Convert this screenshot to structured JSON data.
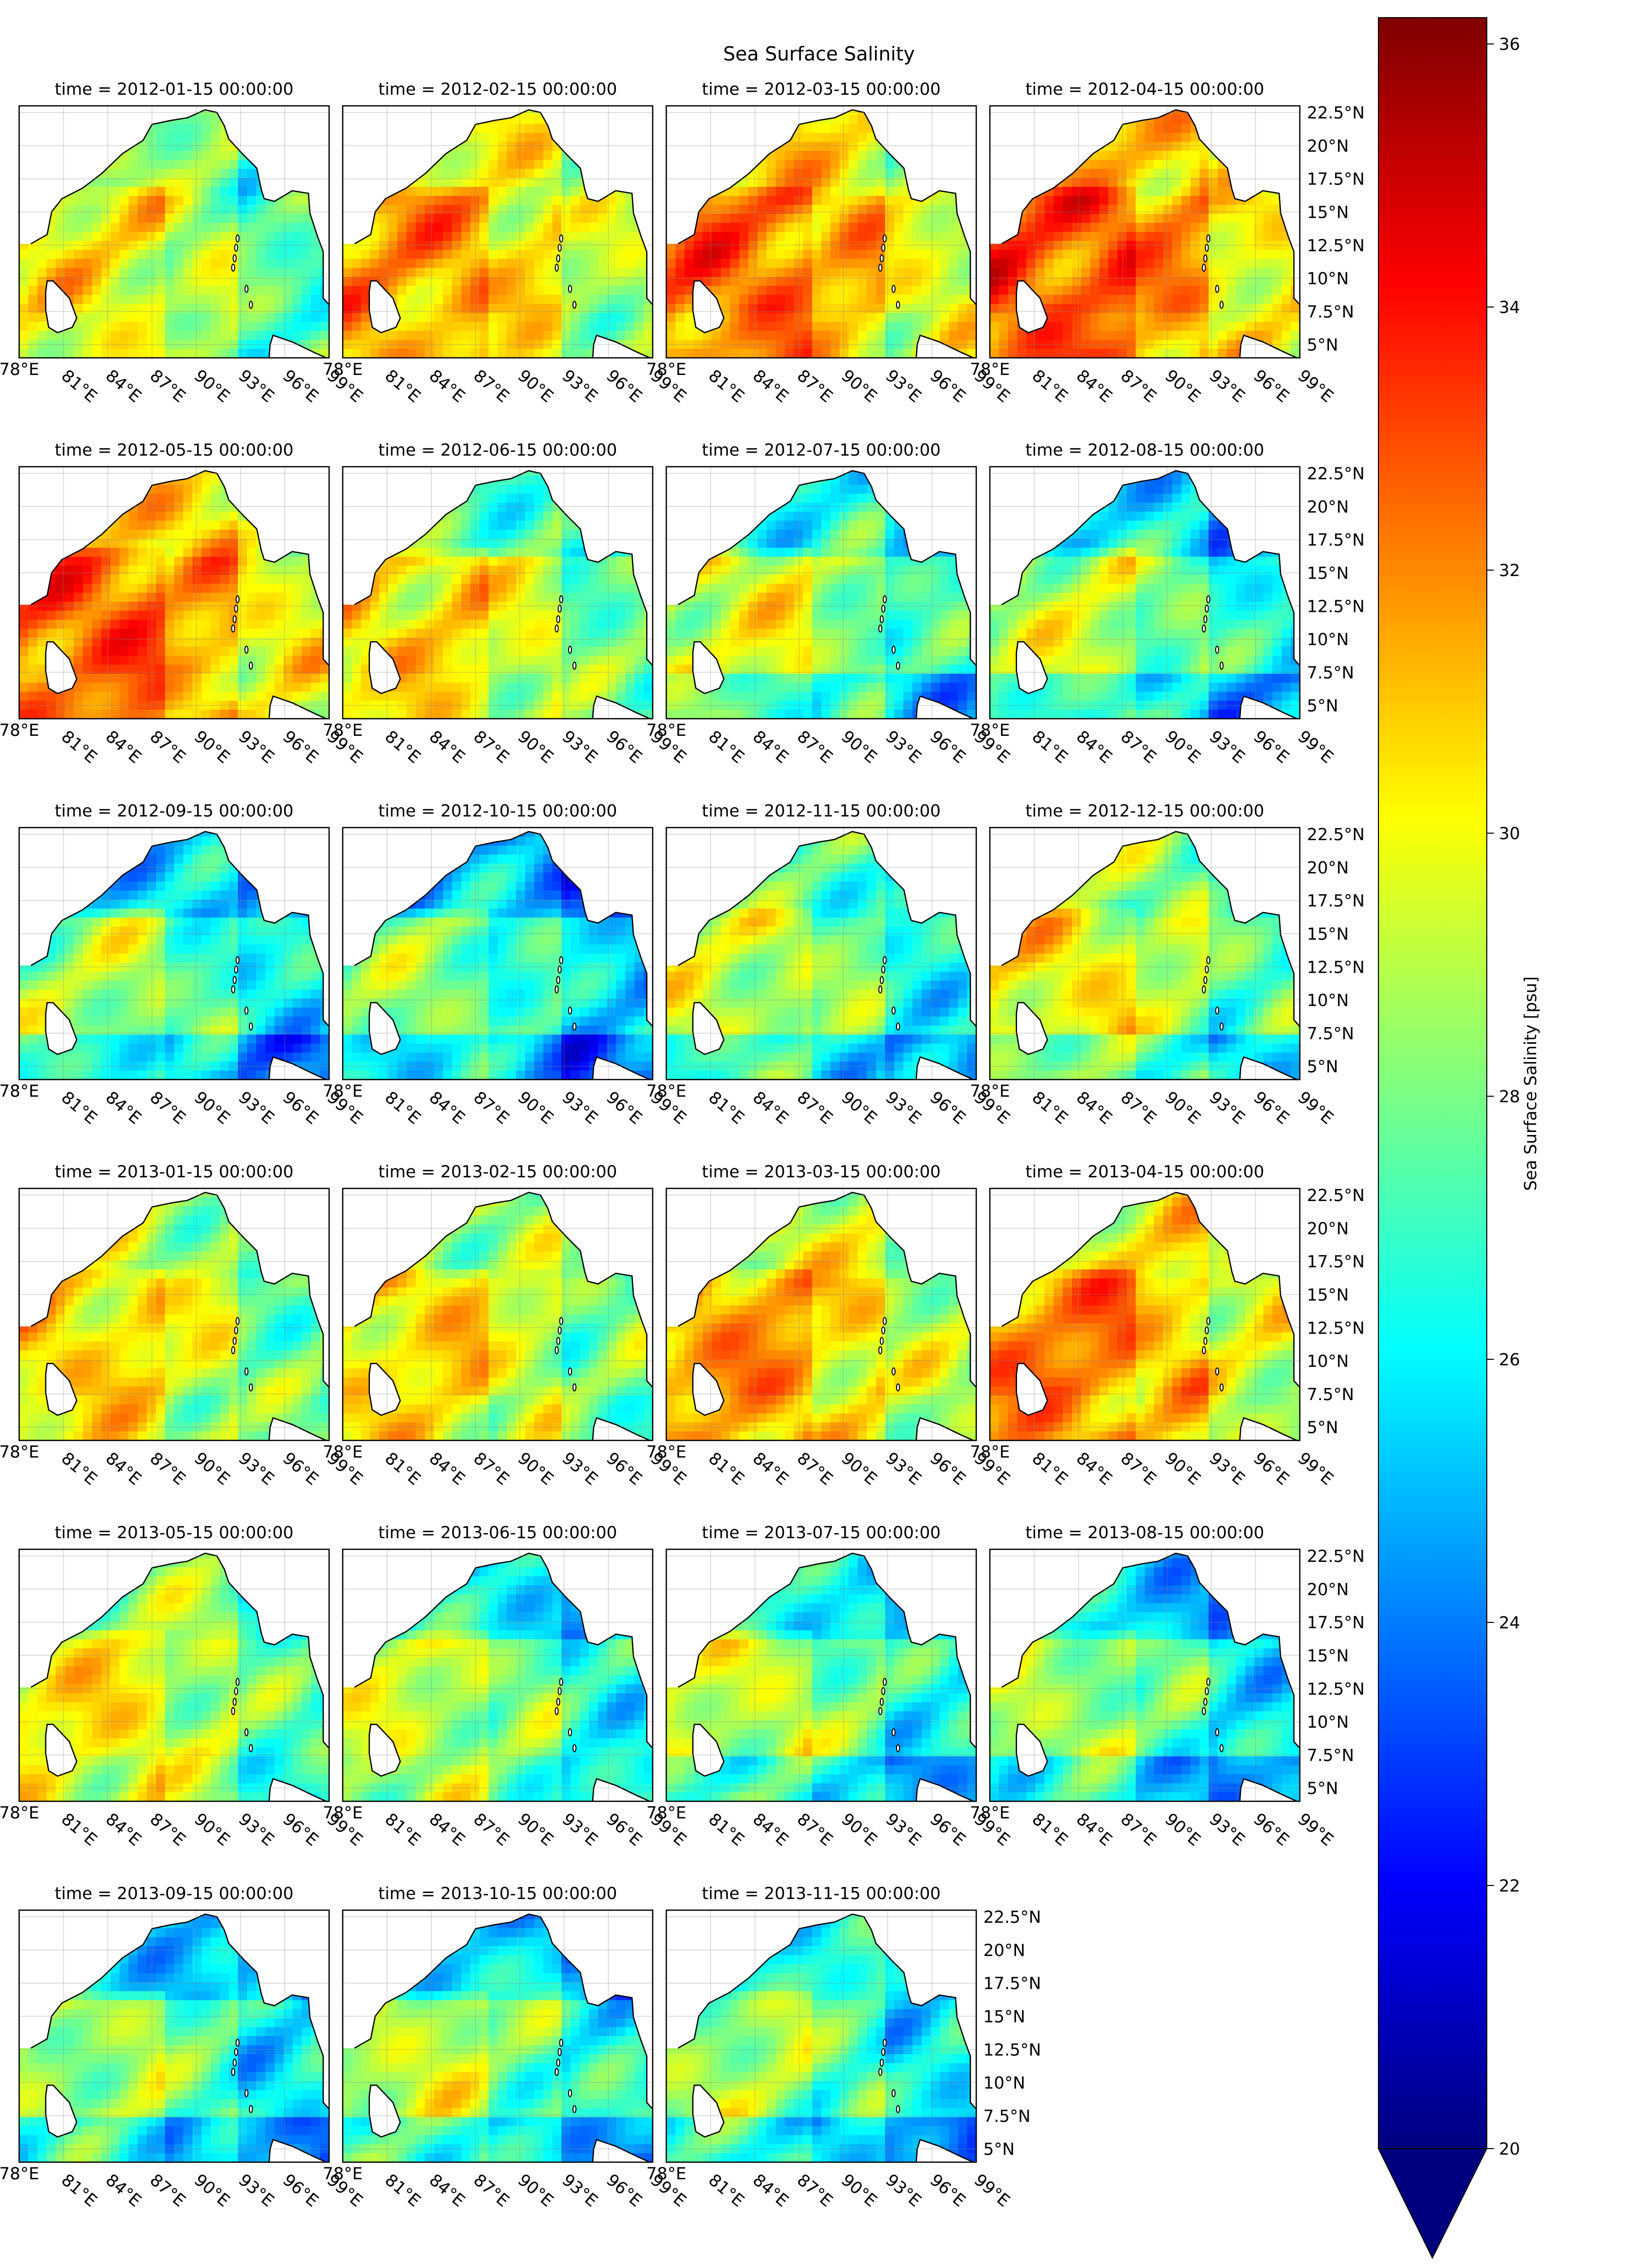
{
  "chart_data": {
    "type": "heatmap",
    "title": "Sea Surface Salinity",
    "colorbar": {
      "label": "Sea Surface Salinity [psu]",
      "min": 20,
      "max": 36.2,
      "ticks": [
        "20",
        "22",
        "24",
        "26",
        "28",
        "30",
        "32",
        "34",
        "36"
      ],
      "extend": "min",
      "colormap": "jet"
    },
    "x_ticks": [
      "78°E",
      "81°E",
      "84°E",
      "87°E",
      "90°E",
      "93°E",
      "96°E",
      "99°E"
    ],
    "y_ticks": [
      "5°N",
      "7.5°N",
      "10°N",
      "12.5°N",
      "15°N",
      "17.5°N",
      "20°N",
      "22.5°N"
    ],
    "lon_range": [
      78,
      99
    ],
    "lat_range": [
      4,
      23
    ],
    "grid": true,
    "panels": [
      {
        "title": "time = 2012-01-15 00:00:00",
        "basin_mean": 29.0
      },
      {
        "title": "time = 2012-02-15 00:00:00",
        "basin_mean": 30.5
      },
      {
        "title": "time = 2012-03-15 00:00:00",
        "basin_mean": 31.3
      },
      {
        "title": "time = 2012-04-15 00:00:00",
        "basin_mean": 31.8
      },
      {
        "title": "time = 2012-05-15 00:00:00",
        "basin_mean": 31.5
      },
      {
        "title": "time = 2012-06-15 00:00:00",
        "basin_mean": 29.5
      },
      {
        "title": "time = 2012-07-15 00:00:00",
        "basin_mean": 28.5
      },
      {
        "title": "time = 2012-08-15 00:00:00",
        "basin_mean": 28.0
      },
      {
        "title": "time = 2012-09-15 00:00:00",
        "basin_mean": 27.5
      },
      {
        "title": "time = 2012-10-15 00:00:00",
        "basin_mean": 27.0
      },
      {
        "title": "time = 2012-11-15 00:00:00",
        "basin_mean": 28.0
      },
      {
        "title": "time = 2012-12-15 00:00:00",
        "basin_mean": 29.0
      },
      {
        "title": "time = 2013-01-15 00:00:00",
        "basin_mean": 29.5
      },
      {
        "title": "time = 2013-02-15 00:00:00",
        "basin_mean": 29.5
      },
      {
        "title": "time = 2013-03-15 00:00:00",
        "basin_mean": 30.5
      },
      {
        "title": "time = 2013-04-15 00:00:00",
        "basin_mean": 31.0
      },
      {
        "title": "time = 2013-05-15 00:00:00",
        "basin_mean": 29.0
      },
      {
        "title": "time = 2013-06-15 00:00:00",
        "basin_mean": 28.0
      },
      {
        "title": "time = 2013-07-15 00:00:00",
        "basin_mean": 28.0
      },
      {
        "title": "time = 2013-08-15 00:00:00",
        "basin_mean": 27.5
      },
      {
        "title": "time = 2013-09-15 00:00:00",
        "basin_mean": 27.5
      },
      {
        "title": "time = 2013-10-15 00:00:00",
        "basin_mean": 28.0
      },
      {
        "title": "time = 2013-11-15 00:00:00",
        "basin_mean": 27.5
      }
    ]
  }
}
